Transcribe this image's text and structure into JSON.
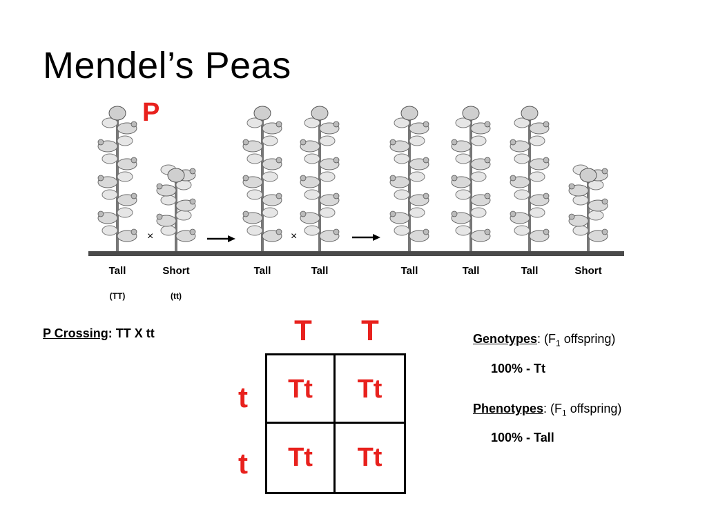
{
  "title": "Mendel’s Peas",
  "p_label": "P",
  "plants": [
    {
      "height": "Tall",
      "genotype": "(TT)",
      "kind": "tall"
    },
    {
      "height": "Short",
      "genotype": "(tt)",
      "kind": "short"
    },
    {
      "height": "Tall",
      "genotype": "",
      "kind": "tall"
    },
    {
      "height": "Tall",
      "genotype": "",
      "kind": "tall"
    },
    {
      "height": "Tall",
      "genotype": "",
      "kind": "tall"
    },
    {
      "height": "Tall",
      "genotype": "",
      "kind": "tall"
    },
    {
      "height": "Tall",
      "genotype": "",
      "kind": "tall"
    },
    {
      "height": "Short",
      "genotype": "",
      "kind": "short"
    }
  ],
  "cross_symbol": "×",
  "cross": {
    "label": "P Crossing",
    "value": ": TT X tt"
  },
  "punnett": {
    "top": [
      "T",
      "T"
    ],
    "left": [
      "t",
      "t"
    ],
    "cells": [
      "Tt",
      "Tt",
      "Tt",
      "Tt"
    ]
  },
  "genotypes": {
    "label": "Genotypes",
    "desc_prefix": ": (F",
    "desc_sub": "1",
    "desc_suffix": " offspring)",
    "value": "100% - Tt"
  },
  "phenotypes": {
    "label": "Phenotypes",
    "desc_prefix": ": (F",
    "desc_sub": "1",
    "desc_suffix": " offspring)",
    "value": "100% - Tall"
  }
}
